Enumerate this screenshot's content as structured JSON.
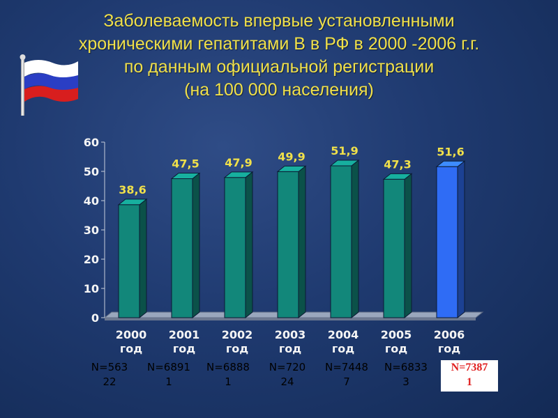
{
  "title": {
    "line1": "Заболеваемость впервые установленными",
    "line2": "хроническими гепатитами В  в РФ в 2000 -2006 г.г.",
    "line3": "по данным официальной регистрации",
    "line4": "(на 100 000 населения)"
  },
  "colors": {
    "title": "#f0e04a",
    "bar": "#12877a",
    "bar_highlight": "#2f6cf5",
    "labels": "#f5f5f5",
    "value_labels": "#f0e04a",
    "highlight_text": "#e02020"
  },
  "chart_data": {
    "type": "bar",
    "categories": [
      "2000 год",
      "2001 год",
      "2002 год",
      "2003 год",
      "2004 год",
      "2005 год",
      "2006 год"
    ],
    "values": [
      38.6,
      47.5,
      47.9,
      49.9,
      51.9,
      47.3,
      51.6
    ],
    "value_labels": [
      "38,6",
      "47,5",
      "47,9",
      "49,9",
      "51,9",
      "47,3",
      "51,6"
    ],
    "highlight_index": 6,
    "ylim": [
      0,
      60
    ],
    "yticks": [
      0,
      10,
      20,
      30,
      40,
      50,
      60
    ],
    "grid": false,
    "legend": "none",
    "style": "3d"
  },
  "counts": [
    [
      "N=563",
      "22"
    ],
    [
      "N=6891",
      "1"
    ],
    [
      "N=6888",
      "1"
    ],
    [
      "N=720",
      "24"
    ],
    [
      "N=7448",
      "7"
    ],
    [
      "N=6833",
      "3"
    ],
    [
      "N=7387",
      "1"
    ]
  ]
}
